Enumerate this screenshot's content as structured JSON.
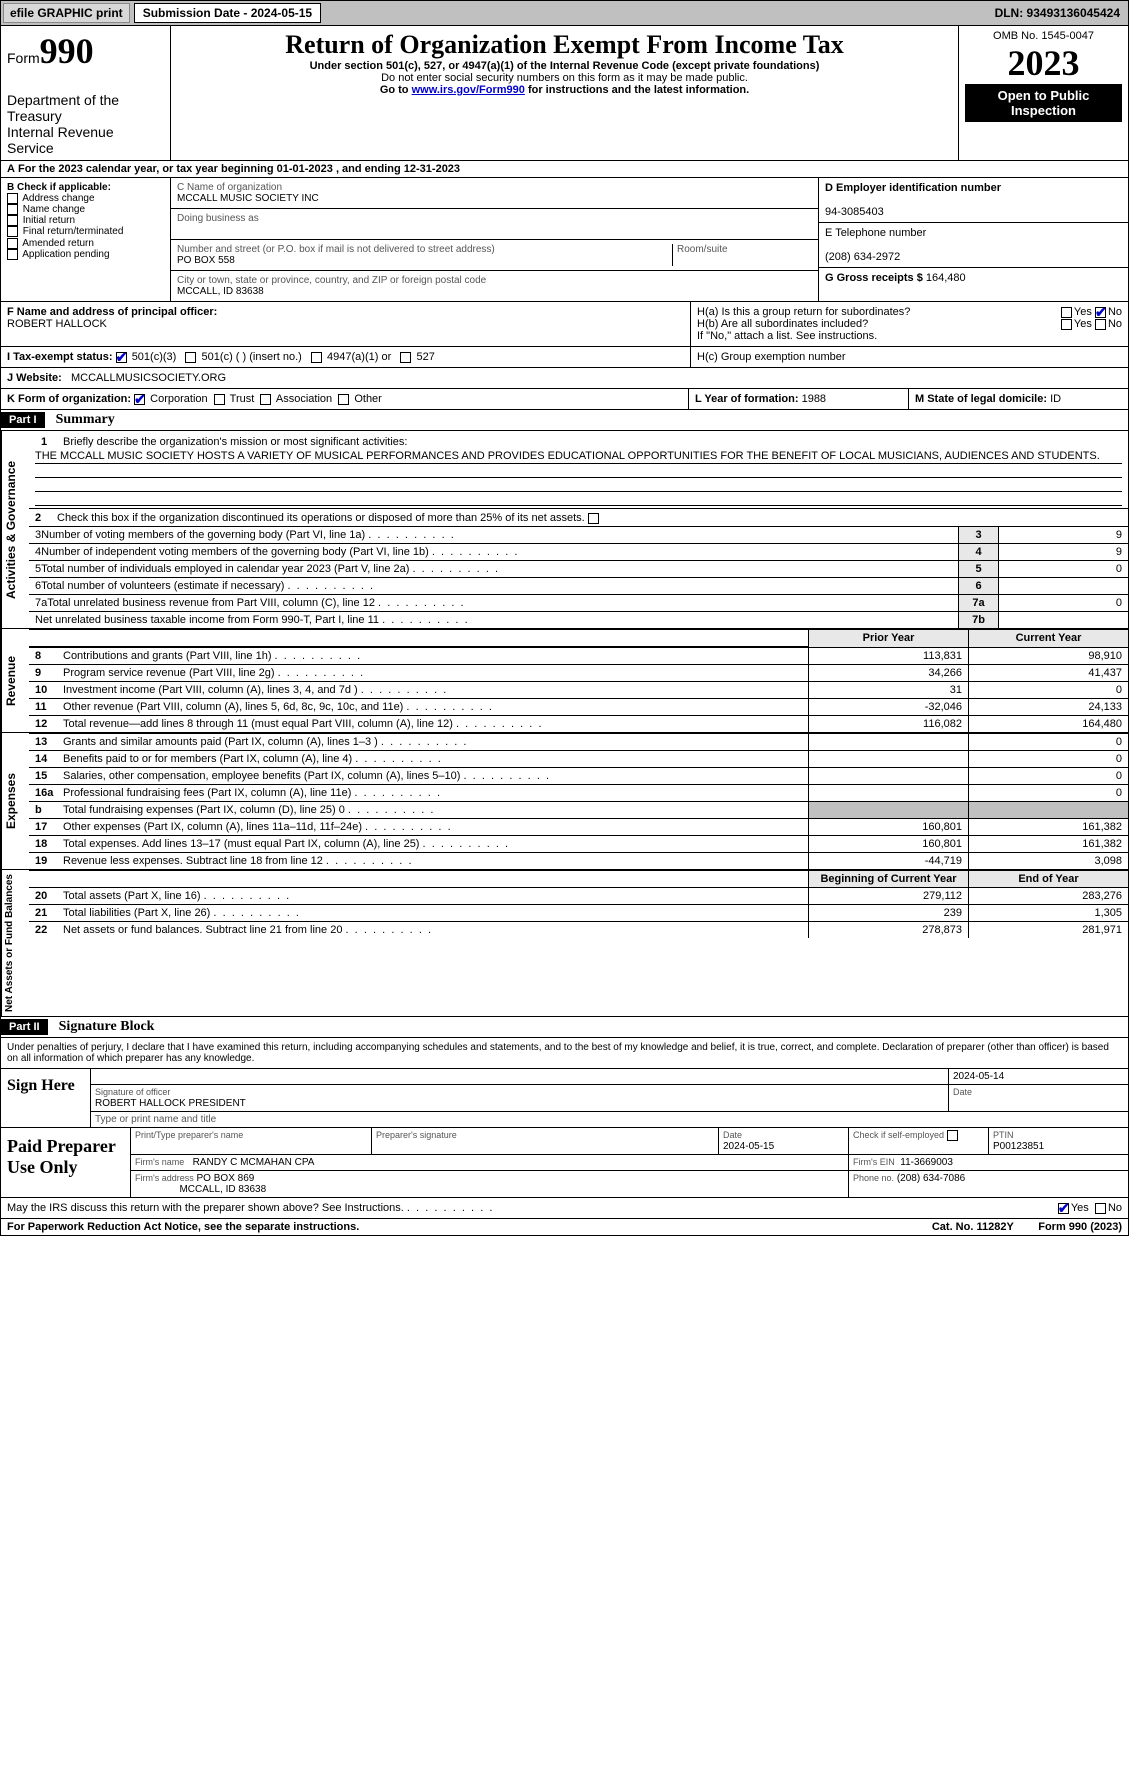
{
  "topbar": {
    "efile": "efile GRAPHIC print",
    "submission": "Submission Date - 2024-05-15",
    "dln": "DLN: 93493136045424"
  },
  "header": {
    "form_label": "Form",
    "form_number": "990",
    "dept": "Department of the Treasury",
    "irs": "Internal Revenue Service",
    "title": "Return of Organization Exempt From Income Tax",
    "subtitle": "Under section 501(c), 527, or 4947(a)(1) of the Internal Revenue Code (except private foundations)",
    "ssn_note": "Do not enter social security numbers on this form as it may be made public.",
    "goto_pre": "Go to ",
    "goto_link": "www.irs.gov/Form990",
    "goto_post": " for instructions and the latest information.",
    "omb": "OMB No. 1545-0047",
    "year": "2023",
    "open": "Open to Public Inspection"
  },
  "A": {
    "text": "For the 2023 calendar year, or tax year beginning 01-01-2023   , and ending 12-31-2023",
    "prefix": "A"
  },
  "B": {
    "label": "B Check if applicable:",
    "items": [
      "Address change",
      "Name change",
      "Initial return",
      "Final return/terminated",
      "Amended return",
      "Application pending"
    ]
  },
  "C": {
    "name_label": "C Name of organization",
    "name": "MCCALL MUSIC SOCIETY INC",
    "dba_label": "Doing business as",
    "dba": "",
    "street_label": "Number and street (or P.O. box if mail is not delivered to street address)",
    "room_label": "Room/suite",
    "street": "PO BOX 558",
    "city_label": "City or town, state or province, country, and ZIP or foreign postal code",
    "city": "MCCALL, ID  83638"
  },
  "D": {
    "label": "D Employer identification number",
    "value": "94-3085403"
  },
  "E": {
    "label": "E Telephone number",
    "value": "(208) 634-2972"
  },
  "G": {
    "label": "G Gross receipts $",
    "value": "164,480"
  },
  "F": {
    "label": "F  Name and address of principal officer:",
    "name": "ROBERT HALLOCK"
  },
  "H": {
    "a": "H(a)  Is this a group return for subordinates?",
    "b": "H(b)  Are all subordinates included?",
    "b_note": "If \"No,\" attach a list. See instructions.",
    "c": "H(c)  Group exemption number",
    "yes": "Yes",
    "no": "No"
  },
  "I": {
    "label": "I    Tax-exempt status:",
    "opts": [
      "501(c)(3)",
      "501(c) (  ) (insert no.)",
      "4947(a)(1) or",
      "527"
    ]
  },
  "J": {
    "label": "J    Website:",
    "value": "MCCALLMUSICSOCIETY.ORG"
  },
  "K": {
    "label": "K Form of organization:",
    "opts": [
      "Corporation",
      "Trust",
      "Association",
      "Other"
    ]
  },
  "L": {
    "label": "L Year of formation:",
    "value": "1988"
  },
  "M": {
    "label": "M State of legal domicile:",
    "value": "ID"
  },
  "part1": {
    "bar": "Part I",
    "title": "Summary"
  },
  "summary": {
    "sec1_label": "Activities & Governance",
    "line1_label": "Briefly describe the organization's mission or most significant activities:",
    "line1_text": "THE MCCALL MUSIC SOCIETY HOSTS A VARIETY OF MUSICAL PERFORMANCES AND PROVIDES EDUCATIONAL OPPORTUNITIES FOR THE BENEFIT OF LOCAL MUSICIANS, AUDIENCES AND STUDENTS.",
    "line2": "Check this box      if the organization discontinued its operations or disposed of more than 25% of its net assets.",
    "lines_3_7": [
      {
        "n": "3",
        "t": "Number of voting members of the governing body (Part VI, line 1a)",
        "box": "3",
        "v": "9"
      },
      {
        "n": "4",
        "t": "Number of independent voting members of the governing body (Part VI, line 1b)",
        "box": "4",
        "v": "9"
      },
      {
        "n": "5",
        "t": "Total number of individuals employed in calendar year 2023 (Part V, line 2a)",
        "box": "5",
        "v": "0"
      },
      {
        "n": "6",
        "t": "Total number of volunteers (estimate if necessary)",
        "box": "6",
        "v": ""
      },
      {
        "n": "7a",
        "t": "Total unrelated business revenue from Part VIII, column (C), line 12",
        "box": "7a",
        "v": "0"
      },
      {
        "n": "",
        "t": "Net unrelated business taxable income from Form 990-T, Part I, line 11",
        "box": "7b",
        "v": ""
      }
    ],
    "col_prior": "Prior Year",
    "col_current": "Current Year",
    "sec2_label": "Revenue",
    "revenue": [
      {
        "n": "8",
        "t": "Contributions and grants (Part VIII, line 1h)",
        "p": "113,831",
        "c": "98,910"
      },
      {
        "n": "9",
        "t": "Program service revenue (Part VIII, line 2g)",
        "p": "34,266",
        "c": "41,437"
      },
      {
        "n": "10",
        "t": "Investment income (Part VIII, column (A), lines 3, 4, and 7d )",
        "p": "31",
        "c": "0"
      },
      {
        "n": "11",
        "t": "Other revenue (Part VIII, column (A), lines 5, 6d, 8c, 9c, 10c, and 11e)",
        "p": "-32,046",
        "c": "24,133"
      },
      {
        "n": "12",
        "t": "Total revenue—add lines 8 through 11 (must equal Part VIII, column (A), line 12)",
        "p": "116,082",
        "c": "164,480"
      }
    ],
    "sec3_label": "Expenses",
    "expenses": [
      {
        "n": "13",
        "t": "Grants and similar amounts paid (Part IX, column (A), lines 1–3 )",
        "p": "",
        "c": "0"
      },
      {
        "n": "14",
        "t": "Benefits paid to or for members (Part IX, column (A), line 4)",
        "p": "",
        "c": "0"
      },
      {
        "n": "15",
        "t": "Salaries, other compensation, employee benefits (Part IX, column (A), lines 5–10)",
        "p": "",
        "c": "0"
      },
      {
        "n": "16a",
        "t": "Professional fundraising fees (Part IX, column (A), line 11e)",
        "p": "",
        "c": "0"
      },
      {
        "n": "b",
        "t": "Total fundraising expenses (Part IX, column (D), line 25) 0",
        "p": "shade",
        "c": "shade"
      },
      {
        "n": "17",
        "t": "Other expenses (Part IX, column (A), lines 11a–11d, 11f–24e)",
        "p": "160,801",
        "c": "161,382"
      },
      {
        "n": "18",
        "t": "Total expenses. Add lines 13–17 (must equal Part IX, column (A), line 25)",
        "p": "160,801",
        "c": "161,382"
      },
      {
        "n": "19",
        "t": "Revenue less expenses. Subtract line 18 from line 12",
        "p": "-44,719",
        "c": "3,098"
      }
    ],
    "col_begin": "Beginning of Current Year",
    "col_end": "End of Year",
    "sec4_label": "Net Assets or Fund Balances",
    "net": [
      {
        "n": "20",
        "t": "Total assets (Part X, line 16)",
        "p": "279,112",
        "c": "283,276"
      },
      {
        "n": "21",
        "t": "Total liabilities (Part X, line 26)",
        "p": "239",
        "c": "1,305"
      },
      {
        "n": "22",
        "t": "Net assets or fund balances. Subtract line 21 from line 20",
        "p": "278,873",
        "c": "281,971"
      }
    ]
  },
  "part2": {
    "bar": "Part II",
    "title": "Signature Block"
  },
  "sig": {
    "decl": "Under penalties of perjury, I declare that I have examined this return, including accompanying schedules and statements, and to the best of my knowledge and belief, it is true, correct, and complete. Declaration of preparer (other than officer) is based on all information of which preparer has any knowledge.",
    "sign_here": "Sign Here",
    "date": "2024-05-14",
    "sig_officer_label": "Signature of officer",
    "officer": "ROBERT HALLOCK PRESIDENT",
    "type_label": "Type or print name and title",
    "date_label": "Date",
    "paid": "Paid Preparer Use Only",
    "prep_name_label": "Print/Type preparer's name",
    "prep_sig_label": "Preparer's signature",
    "prep_date": "2024-05-15",
    "check_self": "Check        if self-employed",
    "ptin_label": "PTIN",
    "ptin": "P00123851",
    "firm_name_label": "Firm's name",
    "firm_name": "RANDY C MCMAHAN CPA",
    "firm_ein_label": "Firm's EIN",
    "firm_ein": "11-3669003",
    "firm_addr_label": "Firm's address",
    "firm_addr1": "PO BOX 869",
    "firm_addr2": "MCCALL, ID  83638",
    "phone_label": "Phone no.",
    "phone": "(208) 634-7086",
    "discuss": "May the IRS discuss this return with the preparer shown above? See Instructions.",
    "yes": "Yes",
    "no": "No"
  },
  "footer": {
    "pra": "For Paperwork Reduction Act Notice, see the separate instructions.",
    "cat": "Cat. No. 11282Y",
    "form": "Form 990 (2023)"
  }
}
